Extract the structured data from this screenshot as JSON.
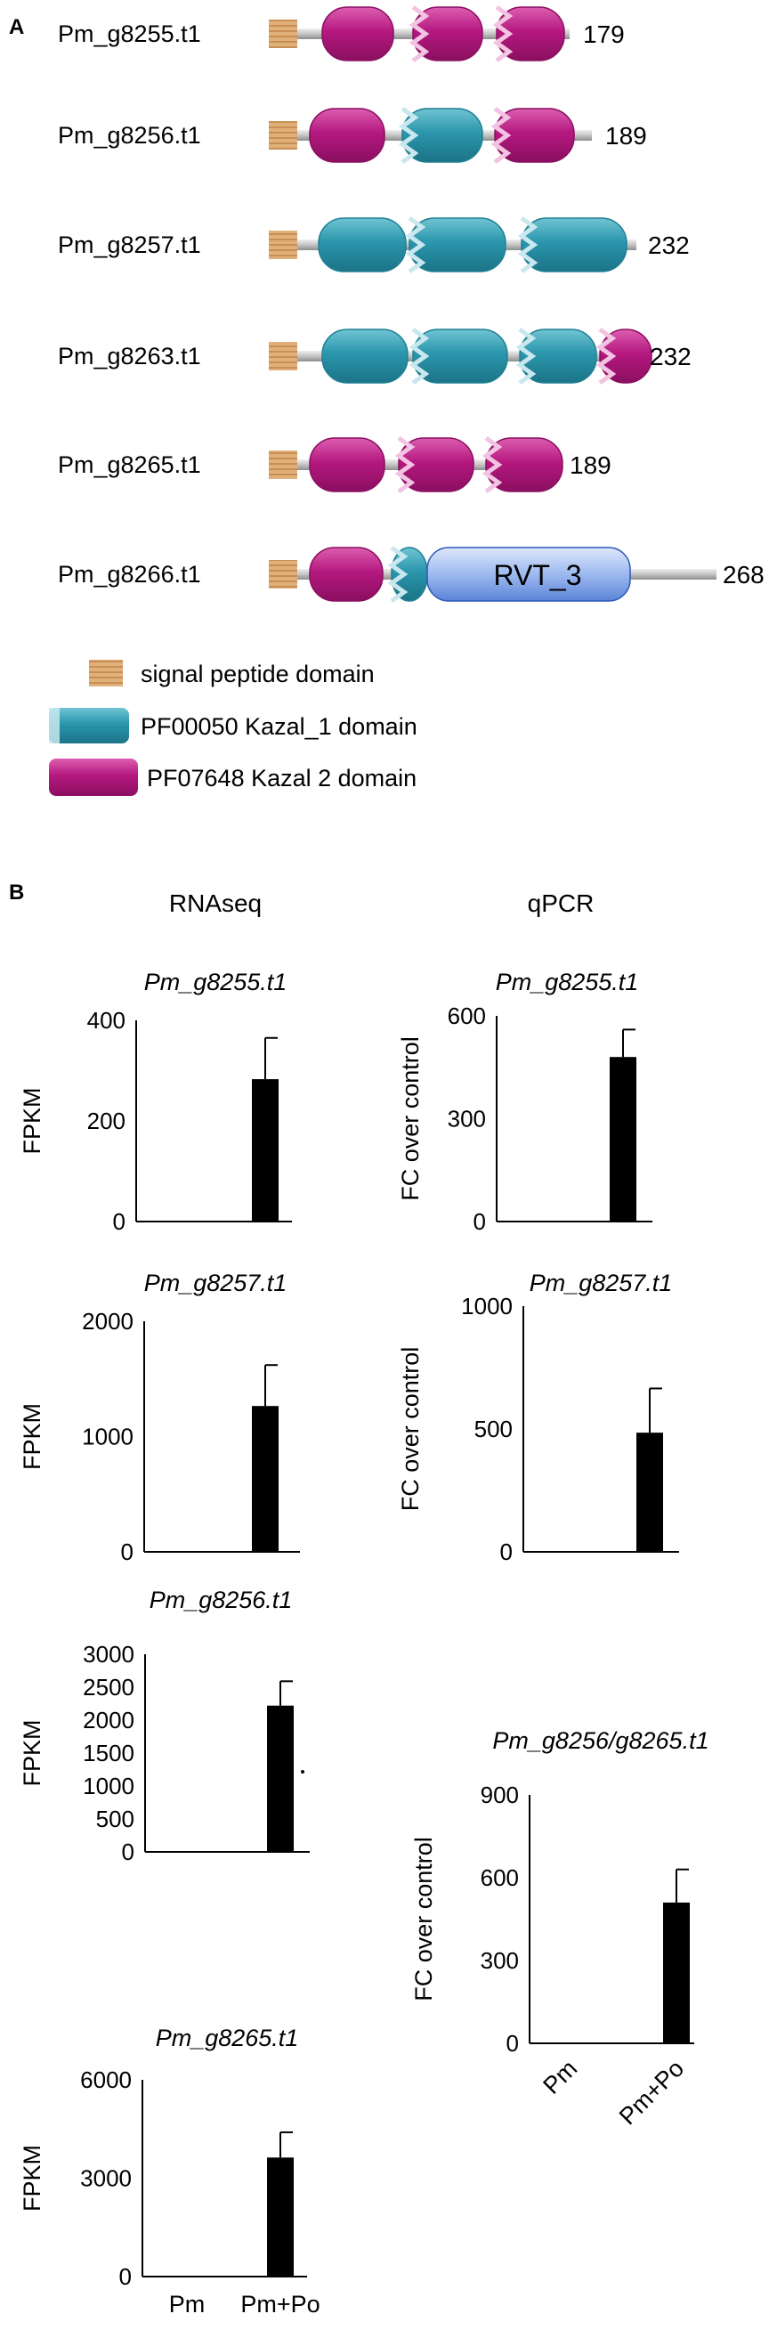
{
  "panel_a": {
    "label": "A",
    "proteins": [
      {
        "name": "Pm_g8255.t1",
        "length": "179",
        "domains": [
          "kazal2",
          "kazal2",
          "kazal2"
        ]
      },
      {
        "name": "Pm_g8256.t1",
        "length": "189",
        "domains": [
          "kazal2",
          "kazal1",
          "kazal2"
        ]
      },
      {
        "name": "Pm_g8257.t1",
        "length": "232",
        "domains": [
          "kazal1",
          "kazal1",
          "kazal1"
        ]
      },
      {
        "name": "Pm_g8263.t1",
        "length": "232",
        "domains": [
          "kazal1",
          "kazal1",
          "kazal2"
        ]
      },
      {
        "name": "Pm_g8265.t1",
        "length": "189",
        "domains": [
          "kazal2",
          "kazal2",
          "kazal2"
        ]
      },
      {
        "name": "Pm_g8266.t1",
        "length": "268",
        "domains": [
          "kazal2",
          "kazal1",
          "rvt"
        ],
        "rvt_label": "RVT_3"
      }
    ],
    "legend": {
      "signal": "signal peptide domain",
      "kazal1": "PF00050  Kazal_1 domain",
      "kazal2": "PF07648  Kazal 2 domain"
    },
    "colors": {
      "signal": "#e0b07a",
      "kazal1": "#2a96ac",
      "kazal2": "#b5187f",
      "rvt": "#3a6fd0",
      "linker": "#c4c4c4"
    }
  },
  "panel_b": {
    "label": "B",
    "col_titles": {
      "rnaseq": "RNAseq",
      "qpcr": "qPCR"
    },
    "x_categories": [
      "Pm",
      "Pm+Po"
    ],
    "bar_color": "#000000"
  },
  "chart_data": [
    {
      "type": "bar",
      "title": "Pm_g8255.t1",
      "method": "RNAseq",
      "ylabel": "FPKM",
      "ylim": [
        0,
        400
      ],
      "yticks": [
        "0",
        "200",
        "400"
      ],
      "categories": [
        "Pm",
        "Pm+Po"
      ],
      "values": [
        0,
        283
      ],
      "errors": [
        0,
        82
      ]
    },
    {
      "type": "bar",
      "title": "Pm_g8255.t1",
      "method": "qPCR",
      "ylabel": "FC over control",
      "ylim": [
        0,
        600
      ],
      "yticks": [
        "0",
        "300",
        "600"
      ],
      "categories": [
        "Pm",
        "Pm+Po"
      ],
      "values": [
        1,
        480
      ],
      "errors": [
        0,
        80
      ]
    },
    {
      "type": "bar",
      "title": "Pm_g8257.t1",
      "method": "RNAseq",
      "ylabel": "FPKM",
      "ylim": [
        0,
        2000
      ],
      "yticks": [
        "0",
        "1000",
        "2000"
      ],
      "categories": [
        "Pm",
        "Pm+Po"
      ],
      "values": [
        0,
        1265
      ],
      "errors": [
        0,
        355
      ]
    },
    {
      "type": "bar",
      "title": "Pm_g8257.t1",
      "method": "qPCR",
      "ylabel": "FC over control",
      "ylim": [
        0,
        1000
      ],
      "yticks": [
        "0",
        "500",
        "1000"
      ],
      "categories": [
        "Pm",
        "Pm+Po"
      ],
      "values": [
        1,
        485
      ],
      "errors": [
        0,
        180
      ]
    },
    {
      "type": "bar",
      "title": "Pm_g8256.t1",
      "method": "RNAseq",
      "ylabel": "FPKM",
      "ylim": [
        0,
        3000
      ],
      "yticks": [
        "0",
        "500",
        "1000",
        "1500",
        "2000",
        "2500",
        "3000"
      ],
      "categories": [
        "Pm",
        "Pm+Po"
      ],
      "values": [
        0,
        2220
      ],
      "errors": [
        0,
        370
      ]
    },
    {
      "type": "bar",
      "title": "Pm_g8256/g8265.t1",
      "method": "qPCR",
      "ylabel": "FC over control",
      "ylim": [
        0,
        900
      ],
      "yticks": [
        "0",
        "300",
        "600",
        "900"
      ],
      "categories": [
        "Pm",
        "Pm+Po"
      ],
      "values": [
        1,
        510
      ],
      "errors": [
        0,
        120
      ]
    },
    {
      "type": "bar",
      "title": "Pm_g8265.t1",
      "method": "RNAseq",
      "ylabel": "FPKM",
      "ylim": [
        0,
        6000
      ],
      "yticks": [
        "0",
        "3000",
        "6000"
      ],
      "categories": [
        "Pm",
        "Pm+Po"
      ],
      "values": [
        0,
        3630
      ],
      "errors": [
        0,
        770
      ]
    }
  ]
}
